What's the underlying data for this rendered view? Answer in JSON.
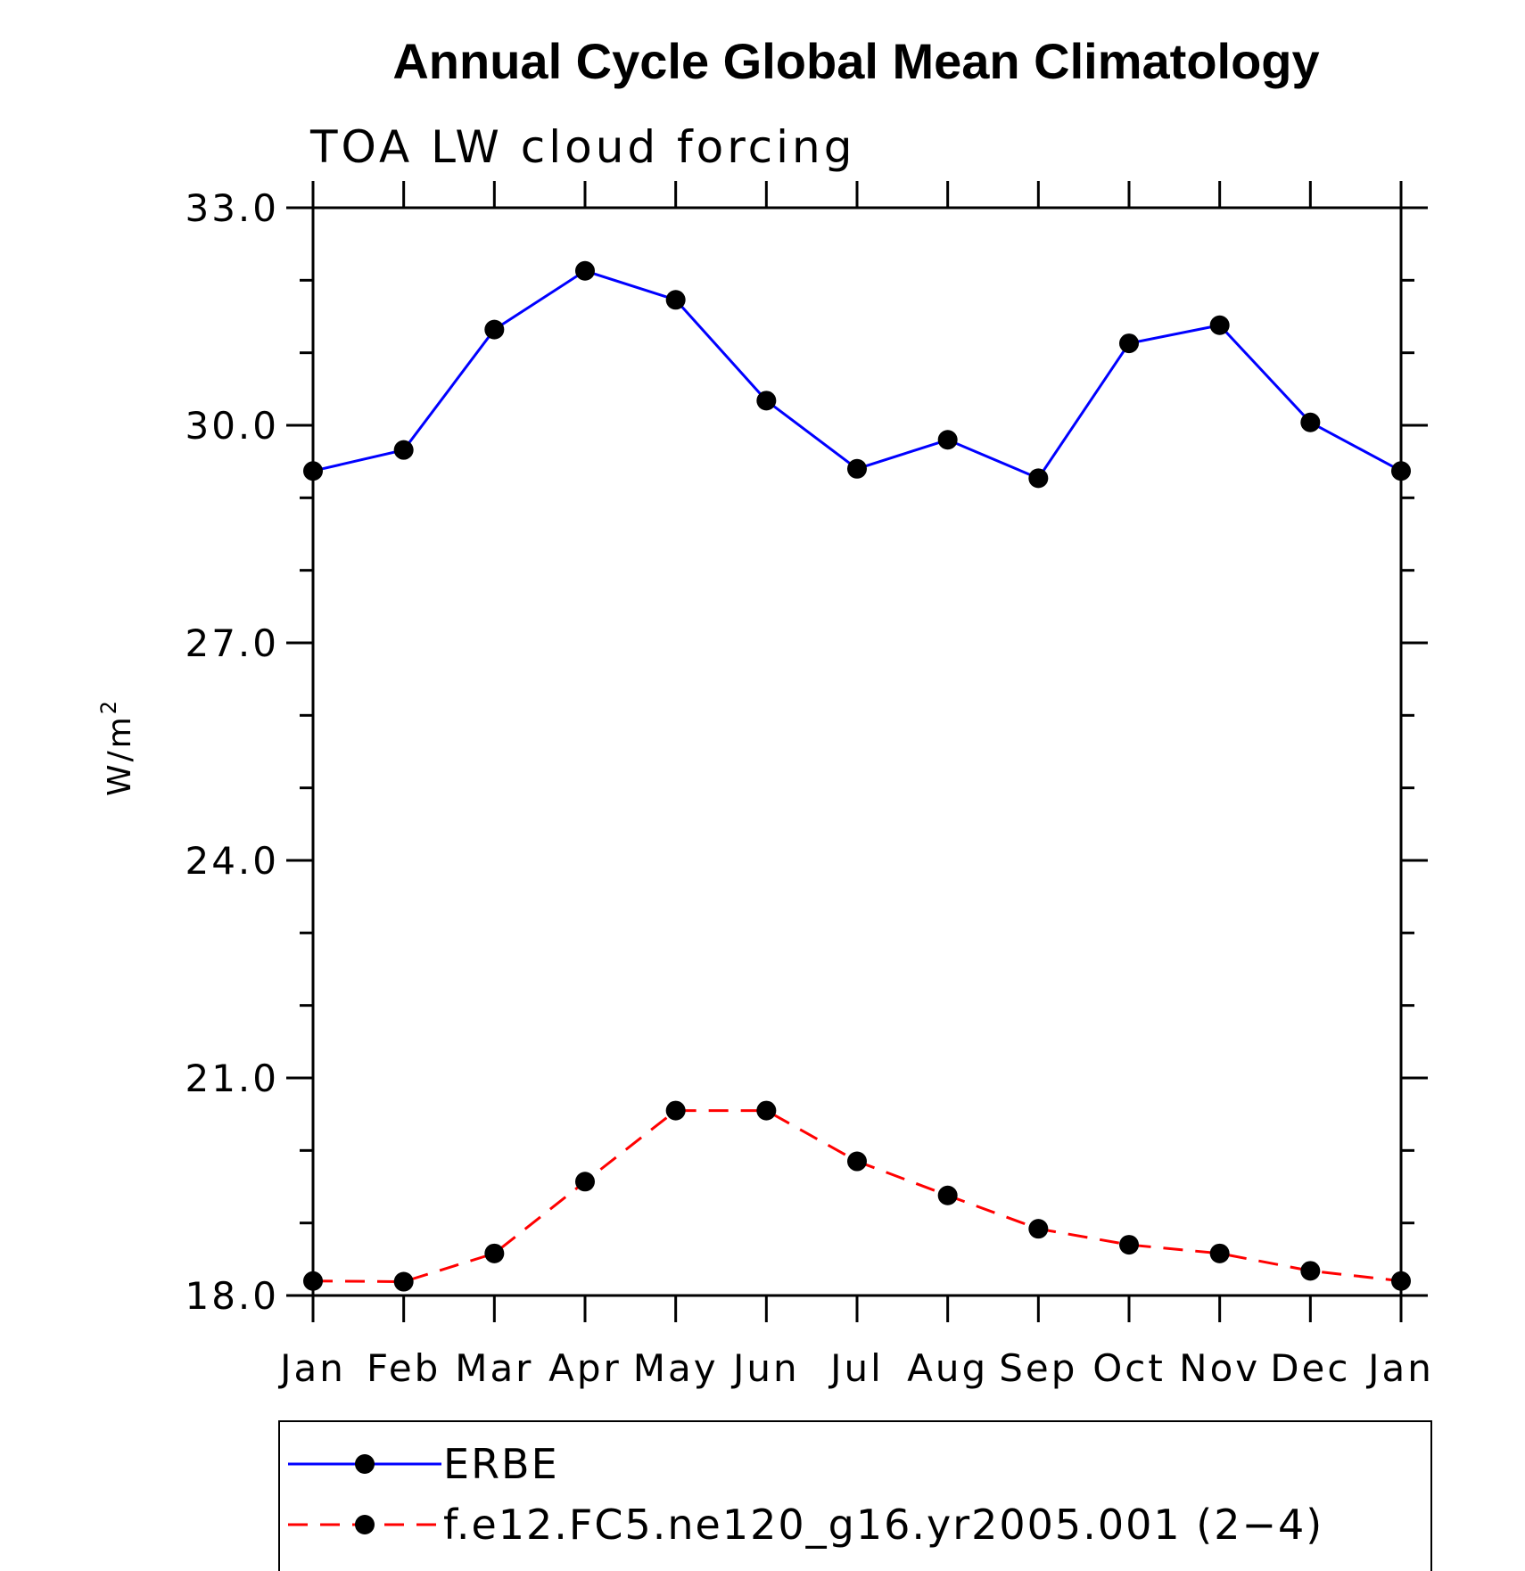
{
  "chart_data": {
    "type": "line",
    "title": "Annual Cycle Global Mean Climatology",
    "subtitle": "TOA LW cloud forcing",
    "ylabel": "W/m",
    "ylabel_superscript": "2",
    "xlabel": "",
    "categories": [
      "Jan",
      "Feb",
      "Mar",
      "Apr",
      "May",
      "Jun",
      "Jul",
      "Aug",
      "Sep",
      "Oct",
      "Nov",
      "Dec",
      "Jan"
    ],
    "ylim": [
      18.0,
      33.0
    ],
    "y_major_ticks": [
      "18.0",
      "21.0",
      "24.0",
      "27.0",
      "30.0",
      "33.0"
    ],
    "y_major_values": [
      18,
      21,
      24,
      27,
      30,
      33
    ],
    "y_minor_step": 1.0,
    "series": [
      {
        "name": "ERBE",
        "color": "#0000ff",
        "line_style": "solid",
        "marker": "filled-circle",
        "values": [
          29.37,
          29.66,
          31.32,
          32.13,
          31.73,
          30.34,
          29.4,
          29.8,
          29.27,
          31.13,
          31.38,
          30.04,
          29.37
        ]
      },
      {
        "name": "f.e12.FC5.ne120_g16.yr2005.001 (2−4)",
        "color": "#ff0000",
        "line_style": "dashed",
        "marker": "filled-circle",
        "values": [
          18.2,
          18.19,
          18.58,
          19.57,
          20.55,
          20.55,
          19.85,
          19.38,
          18.92,
          18.7,
          18.58,
          18.34,
          18.2
        ]
      }
    ],
    "legend_position": "bottom"
  }
}
